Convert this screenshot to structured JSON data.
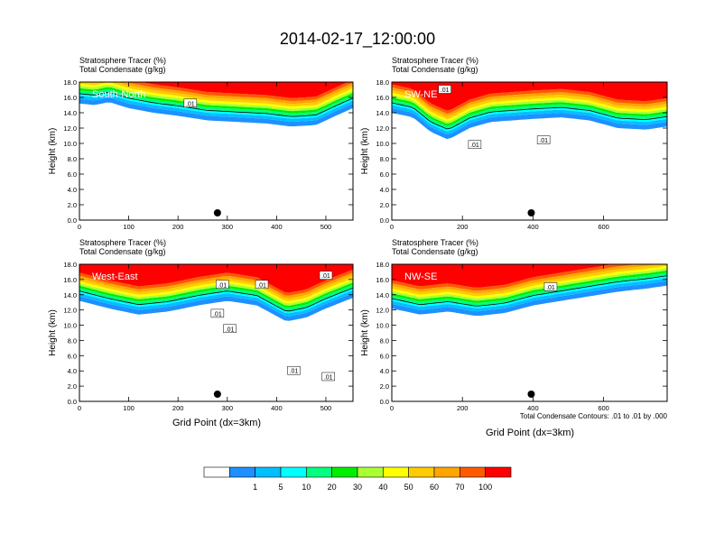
{
  "figure": {
    "title": "2014-02-17_12:00:00",
    "xlabel": "Grid Point (dx=3km)",
    "contour_note": "Total Condensate Contours: .01 to .01 by .000"
  },
  "colorbar": {
    "colors": [
      "#ffffff",
      "#1e90ff",
      "#00bfff",
      "#00ffff",
      "#00ff80",
      "#00ee00",
      "#aaff33",
      "#ffff00",
      "#ffcc00",
      "#ffa500",
      "#ff5a00",
      "#ff0000"
    ],
    "tick_labels": [
      "1",
      "5",
      "10",
      "20",
      "30",
      "40",
      "50",
      "60",
      "70",
      "100"
    ]
  },
  "chart_data": [
    {
      "type": "heatmap",
      "section": "South-North",
      "title_line1": "Stratosphere Tracer   (%)",
      "title_line2": "Total Condensate   (g/kg)",
      "ylabel": "Height (km)",
      "xlim": [
        0,
        555
      ],
      "ylim": [
        0,
        18
      ],
      "xticks": [
        0,
        100,
        200,
        300,
        400,
        500
      ],
      "yticks": [
        "0.0",
        "2.0",
        "4.0",
        "6.0",
        "8.0",
        "10.0",
        "12.0",
        "14.0",
        "16.0",
        "18.0"
      ],
      "marker_x": 280,
      "contour_labels": [
        {
          "text": ".01",
          "x": 225,
          "y": 15.2
        }
      ],
      "tracer_bottom_km": [
        [
          0,
          15.2
        ],
        [
          30,
          15.0
        ],
        [
          60,
          15.4
        ],
        [
          100,
          14.6
        ],
        [
          150,
          14.0
        ],
        [
          200,
          13.6
        ],
        [
          260,
          13.0
        ],
        [
          320,
          12.8
        ],
        [
          380,
          12.6
        ],
        [
          430,
          12.2
        ],
        [
          480,
          12.4
        ],
        [
          520,
          13.6
        ],
        [
          555,
          14.6
        ]
      ]
    },
    {
      "type": "heatmap",
      "section": "SW-NE",
      "title_line1": "Stratosphere Tracer   (%)",
      "title_line2": "Total Condensate   (g/kg)",
      "ylabel": "Height (km)",
      "xlim": [
        0,
        780
      ],
      "ylim": [
        0,
        18
      ],
      "xticks": [
        0,
        200,
        400,
        600
      ],
      "yticks": [
        "0.0",
        "2.0",
        "4.0",
        "6.0",
        "8.0",
        "10.0",
        "12.0",
        "14.0",
        "16.0",
        "18.0"
      ],
      "marker_x": 395,
      "contour_labels": [
        {
          "text": ".01",
          "x": 150,
          "y": 17.0
        },
        {
          "text": ".01",
          "x": 235,
          "y": 9.8
        },
        {
          "text": ".01",
          "x": 430,
          "y": 10.4
        }
      ],
      "tracer_bottom_km": [
        [
          0,
          14.0
        ],
        [
          60,
          13.4
        ],
        [
          110,
          11.5
        ],
        [
          160,
          10.5
        ],
        [
          220,
          12.0
        ],
        [
          280,
          12.8
        ],
        [
          340,
          13.0
        ],
        [
          400,
          13.2
        ],
        [
          480,
          13.4
        ],
        [
          560,
          13.0
        ],
        [
          640,
          12.0
        ],
        [
          720,
          11.8
        ],
        [
          780,
          12.2
        ]
      ]
    },
    {
      "type": "heatmap",
      "section": "West-East",
      "title_line1": "Stratosphere Tracer   (%)",
      "title_line2": "Total Condensate   (g/kg)",
      "ylabel": "Height (km)",
      "xlim": [
        0,
        555
      ],
      "ylim": [
        0,
        18
      ],
      "xticks": [
        0,
        100,
        200,
        300,
        400,
        500
      ],
      "yticks": [
        "0.0",
        "2.0",
        "4.0",
        "6.0",
        "8.0",
        "10.0",
        "12.0",
        "14.0",
        "16.0",
        "18.0"
      ],
      "marker_x": 280,
      "contour_labels": [
        {
          "text": ".01",
          "x": 500,
          "y": 16.5
        },
        {
          "text": ".01",
          "x": 370,
          "y": 15.3
        },
        {
          "text": ".01",
          "x": 290,
          "y": 15.3
        },
        {
          "text": ".01",
          "x": 280,
          "y": 11.5
        },
        {
          "text": ".01",
          "x": 305,
          "y": 9.5
        },
        {
          "text": ".01",
          "x": 435,
          "y": 4.0
        },
        {
          "text": ".01",
          "x": 505,
          "y": 3.2
        }
      ],
      "tracer_bottom_km": [
        [
          0,
          13.2
        ],
        [
          60,
          12.2
        ],
        [
          120,
          11.4
        ],
        [
          180,
          11.8
        ],
        [
          240,
          12.6
        ],
        [
          300,
          13.2
        ],
        [
          360,
          12.6
        ],
        [
          420,
          10.5
        ],
        [
          460,
          11.0
        ],
        [
          500,
          12.2
        ],
        [
          555,
          13.6
        ]
      ]
    },
    {
      "type": "heatmap",
      "section": "NW-SE",
      "title_line1": "Stratosphere Tracer   (%)",
      "title_line2": "Total Condensate   (g/kg)",
      "ylabel": "Height (km)",
      "xlim": [
        0,
        780
      ],
      "ylim": [
        0,
        18
      ],
      "xticks": [
        0,
        200,
        400,
        600
      ],
      "yticks": [
        "0.0",
        "2.0",
        "4.0",
        "6.0",
        "8.0",
        "10.0",
        "12.0",
        "14.0",
        "16.0",
        "18.0"
      ],
      "marker_x": 395,
      "contour_labels": [
        {
          "text": ".01",
          "x": 450,
          "y": 15.0
        }
      ],
      "tracer_bottom_km": [
        [
          0,
          12.2
        ],
        [
          80,
          11.4
        ],
        [
          160,
          11.8
        ],
        [
          240,
          11.2
        ],
        [
          320,
          11.6
        ],
        [
          400,
          12.6
        ],
        [
          480,
          13.2
        ],
        [
          560,
          13.8
        ],
        [
          640,
          14.4
        ],
        [
          720,
          14.8
        ],
        [
          780,
          15.2
        ]
      ]
    }
  ]
}
